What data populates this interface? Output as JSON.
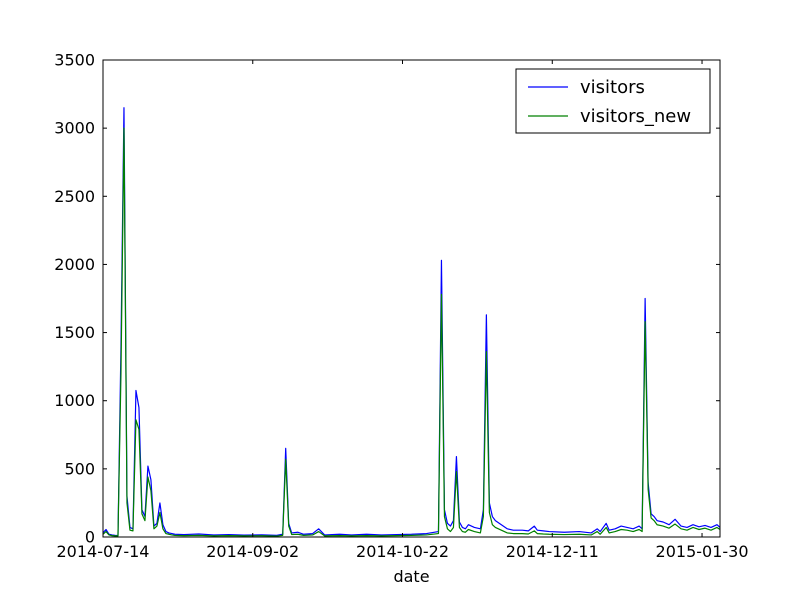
{
  "chart_data": {
    "type": "line",
    "title": "",
    "xlabel": "date",
    "ylabel": "",
    "x_ticks": [
      "2014-07-14",
      "2014-09-02",
      "2014-10-22",
      "2014-12-11",
      "2015-01-30"
    ],
    "xlim": [
      "2014-07-14",
      "2015-02-05"
    ],
    "ylim": [
      0,
      3500
    ],
    "y_ticks": [
      0,
      500,
      1000,
      1500,
      2000,
      2500,
      3000,
      3500
    ],
    "grid": false,
    "legend": "top-right",
    "series": [
      {
        "name": "visitors",
        "color": "#0000ff",
        "points": [
          [
            "2014-07-14",
            30
          ],
          [
            "2014-07-15",
            55
          ],
          [
            "2014-07-16",
            20
          ],
          [
            "2014-07-17",
            15
          ],
          [
            "2014-07-18",
            12
          ],
          [
            "2014-07-19",
            10
          ],
          [
            "2014-07-20",
            1400
          ],
          [
            "2014-07-21",
            3150
          ],
          [
            "2014-07-22",
            300
          ],
          [
            "2014-07-23",
            70
          ],
          [
            "2014-07-24",
            60
          ],
          [
            "2014-07-25",
            1075
          ],
          [
            "2014-07-26",
            950
          ],
          [
            "2014-07-27",
            200
          ],
          [
            "2014-07-28",
            150
          ],
          [
            "2014-07-29",
            520
          ],
          [
            "2014-07-30",
            420
          ],
          [
            "2014-07-31",
            80
          ],
          [
            "2014-08-01",
            100
          ],
          [
            "2014-08-02",
            250
          ],
          [
            "2014-08-03",
            90
          ],
          [
            "2014-08-04",
            40
          ],
          [
            "2014-08-05",
            30
          ],
          [
            "2014-08-06",
            25
          ],
          [
            "2014-08-07",
            20
          ],
          [
            "2014-08-10",
            18
          ],
          [
            "2014-08-15",
            22
          ],
          [
            "2014-08-20",
            15
          ],
          [
            "2014-08-25",
            18
          ],
          [
            "2014-08-30",
            14
          ],
          [
            "2014-09-05",
            16
          ],
          [
            "2014-09-10",
            12
          ],
          [
            "2014-09-12",
            20
          ],
          [
            "2014-09-13",
            650
          ],
          [
            "2014-09-14",
            100
          ],
          [
            "2014-09-15",
            30
          ],
          [
            "2014-09-17",
            35
          ],
          [
            "2014-09-19",
            20
          ],
          [
            "2014-09-22",
            25
          ],
          [
            "2014-09-24",
            60
          ],
          [
            "2014-09-26",
            15
          ],
          [
            "2014-10-01",
            20
          ],
          [
            "2014-10-05",
            15
          ],
          [
            "2014-10-10",
            20
          ],
          [
            "2014-10-15",
            15
          ],
          [
            "2014-10-20",
            18
          ],
          [
            "2014-10-25",
            20
          ],
          [
            "2014-10-30",
            25
          ],
          [
            "2014-11-03",
            40
          ],
          [
            "2014-11-04",
            2030
          ],
          [
            "2014-11-05",
            200
          ],
          [
            "2014-11-06",
            100
          ],
          [
            "2014-11-07",
            80
          ],
          [
            "2014-11-08",
            120
          ],
          [
            "2014-11-09",
            590
          ],
          [
            "2014-11-10",
            110
          ],
          [
            "2014-11-11",
            70
          ],
          [
            "2014-11-12",
            60
          ],
          [
            "2014-11-13",
            90
          ],
          [
            "2014-11-15",
            70
          ],
          [
            "2014-11-17",
            60
          ],
          [
            "2014-11-18",
            200
          ],
          [
            "2014-11-19",
            1630
          ],
          [
            "2014-11-20",
            250
          ],
          [
            "2014-11-21",
            150
          ],
          [
            "2014-11-22",
            120
          ],
          [
            "2014-11-24",
            90
          ],
          [
            "2014-11-26",
            60
          ],
          [
            "2014-11-28",
            50
          ],
          [
            "2014-12-01",
            50
          ],
          [
            "2014-12-03",
            45
          ],
          [
            "2014-12-05",
            80
          ],
          [
            "2014-12-06",
            50
          ],
          [
            "2014-12-08",
            45
          ],
          [
            "2014-12-10",
            40
          ],
          [
            "2014-12-15",
            35
          ],
          [
            "2014-12-20",
            40
          ],
          [
            "2014-12-24",
            30
          ],
          [
            "2014-12-26",
            60
          ],
          [
            "2014-12-27",
            40
          ],
          [
            "2014-12-29",
            100
          ],
          [
            "2014-12-30",
            50
          ],
          [
            "2015-01-01",
            60
          ],
          [
            "2015-01-03",
            80
          ],
          [
            "2015-01-05",
            70
          ],
          [
            "2015-01-07",
            60
          ],
          [
            "2015-01-09",
            80
          ],
          [
            "2015-01-10",
            60
          ],
          [
            "2015-01-11",
            1750
          ],
          [
            "2015-01-12",
            400
          ],
          [
            "2015-01-13",
            170
          ],
          [
            "2015-01-14",
            150
          ],
          [
            "2015-01-15",
            120
          ],
          [
            "2015-01-17",
            110
          ],
          [
            "2015-01-19",
            90
          ],
          [
            "2015-01-21",
            130
          ],
          [
            "2015-01-23",
            80
          ],
          [
            "2015-01-25",
            70
          ],
          [
            "2015-01-27",
            90
          ],
          [
            "2015-01-29",
            75
          ],
          [
            "2015-01-31",
            85
          ],
          [
            "2015-02-02",
            70
          ],
          [
            "2015-02-04",
            90
          ],
          [
            "2015-02-05",
            70
          ]
        ]
      },
      {
        "name": "visitors_new",
        "color": "#008000",
        "points": [
          [
            "2014-07-14",
            20
          ],
          [
            "2014-07-15",
            40
          ],
          [
            "2014-07-16",
            15
          ],
          [
            "2014-07-17",
            10
          ],
          [
            "2014-07-18",
            8
          ],
          [
            "2014-07-19",
            8
          ],
          [
            "2014-07-20",
            1200
          ],
          [
            "2014-07-21",
            3000
          ],
          [
            "2014-07-22",
            250
          ],
          [
            "2014-07-23",
            50
          ],
          [
            "2014-07-24",
            45
          ],
          [
            "2014-07-25",
            860
          ],
          [
            "2014-07-26",
            790
          ],
          [
            "2014-07-27",
            170
          ],
          [
            "2014-07-28",
            120
          ],
          [
            "2014-07-29",
            440
          ],
          [
            "2014-07-30",
            340
          ],
          [
            "2014-07-31",
            60
          ],
          [
            "2014-08-01",
            80
          ],
          [
            "2014-08-02",
            180
          ],
          [
            "2014-08-03",
            60
          ],
          [
            "2014-08-04",
            25
          ],
          [
            "2014-08-05",
            20
          ],
          [
            "2014-08-06",
            15
          ],
          [
            "2014-08-07",
            12
          ],
          [
            "2014-08-10",
            10
          ],
          [
            "2014-08-15",
            12
          ],
          [
            "2014-08-20",
            8
          ],
          [
            "2014-08-25",
            10
          ],
          [
            "2014-08-30",
            8
          ],
          [
            "2014-09-05",
            9
          ],
          [
            "2014-09-10",
            7
          ],
          [
            "2014-09-12",
            12
          ],
          [
            "2014-09-13",
            570
          ],
          [
            "2014-09-14",
            80
          ],
          [
            "2014-09-15",
            18
          ],
          [
            "2014-09-17",
            20
          ],
          [
            "2014-09-19",
            12
          ],
          [
            "2014-09-22",
            15
          ],
          [
            "2014-09-24",
            40
          ],
          [
            "2014-09-26",
            8
          ],
          [
            "2014-10-01",
            10
          ],
          [
            "2014-10-05",
            8
          ],
          [
            "2014-10-10",
            10
          ],
          [
            "2014-10-15",
            8
          ],
          [
            "2014-10-20",
            10
          ],
          [
            "2014-10-25",
            12
          ],
          [
            "2014-10-30",
            15
          ],
          [
            "2014-11-03",
            25
          ],
          [
            "2014-11-04",
            1780
          ],
          [
            "2014-11-05",
            150
          ],
          [
            "2014-11-06",
            60
          ],
          [
            "2014-11-07",
            40
          ],
          [
            "2014-11-08",
            70
          ],
          [
            "2014-11-09",
            480
          ],
          [
            "2014-11-10",
            70
          ],
          [
            "2014-11-11",
            40
          ],
          [
            "2014-11-12",
            35
          ],
          [
            "2014-11-13",
            55
          ],
          [
            "2014-11-15",
            40
          ],
          [
            "2014-11-17",
            30
          ],
          [
            "2014-11-18",
            150
          ],
          [
            "2014-11-19",
            1360
          ],
          [
            "2014-11-20",
            180
          ],
          [
            "2014-11-21",
            90
          ],
          [
            "2014-11-22",
            70
          ],
          [
            "2014-11-24",
            50
          ],
          [
            "2014-11-26",
            30
          ],
          [
            "2014-11-28",
            25
          ],
          [
            "2014-12-01",
            25
          ],
          [
            "2014-12-03",
            22
          ],
          [
            "2014-12-05",
            45
          ],
          [
            "2014-12-06",
            25
          ],
          [
            "2014-12-08",
            22
          ],
          [
            "2014-12-10",
            20
          ],
          [
            "2014-12-15",
            18
          ],
          [
            "2014-12-20",
            20
          ],
          [
            "2014-12-24",
            15
          ],
          [
            "2014-12-26",
            40
          ],
          [
            "2014-12-27",
            20
          ],
          [
            "2014-12-29",
            70
          ],
          [
            "2014-12-30",
            30
          ],
          [
            "2015-01-01",
            40
          ],
          [
            "2015-01-03",
            55
          ],
          [
            "2015-01-05",
            50
          ],
          [
            "2015-01-07",
            40
          ],
          [
            "2015-01-09",
            55
          ],
          [
            "2015-01-10",
            40
          ],
          [
            "2015-01-11",
            1580
          ],
          [
            "2015-01-12",
            350
          ],
          [
            "2015-01-13",
            140
          ],
          [
            "2015-01-14",
            120
          ],
          [
            "2015-01-15",
            90
          ],
          [
            "2015-01-17",
            80
          ],
          [
            "2015-01-19",
            65
          ],
          [
            "2015-01-21",
            95
          ],
          [
            "2015-01-23",
            60
          ],
          [
            "2015-01-25",
            50
          ],
          [
            "2015-01-27",
            70
          ],
          [
            "2015-01-29",
            55
          ],
          [
            "2015-01-31",
            65
          ],
          [
            "2015-02-02",
            50
          ],
          [
            "2015-02-04",
            70
          ],
          [
            "2015-02-05",
            55
          ]
        ]
      }
    ]
  }
}
